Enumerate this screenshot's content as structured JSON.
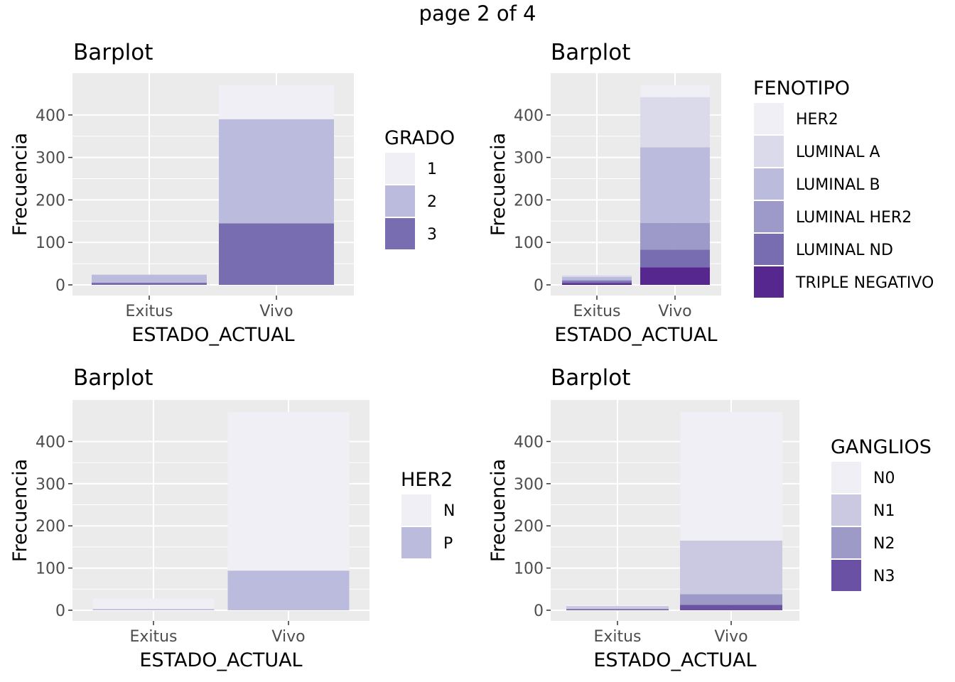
{
  "page_title": "page 2 of 4",
  "colors": {
    "panel_bg": "#EBEBEB",
    "grid": "#FFFFFF",
    "axis_text": "#4D4D4D",
    "palette": [
      "#F0EFF6",
      "#DBDAEB",
      "#BBBCDD",
      "#9D99C8",
      "#776DB0",
      "#56288F"
    ]
  },
  "chart_data": [
    {
      "type": "bar",
      "stacked": true,
      "title": "Barplot",
      "xlabel": "ESTADO_ACTUAL",
      "ylabel": "Frecuencia",
      "categories": [
        "Exitus",
        "Vivo"
      ],
      "ylim": [
        0,
        490
      ],
      "yticks": [
        0,
        100,
        200,
        300,
        400
      ],
      "legend_title": "GRADO",
      "legend_position": "right",
      "series": [
        {
          "name": "1",
          "color": "#F0EFF6",
          "values": [
            0,
            80
          ]
        },
        {
          "name": "2",
          "color": "#BBBCDD",
          "values": [
            19,
            245
          ]
        },
        {
          "name": "3",
          "color": "#776DB0",
          "values": [
            5,
            145
          ]
        }
      ]
    },
    {
      "type": "bar",
      "stacked": true,
      "title": "Barplot",
      "xlabel": "ESTADO_ACTUAL",
      "ylabel": "Frecuencia",
      "categories": [
        "Exitus",
        "Vivo"
      ],
      "ylim": [
        0,
        490
      ],
      "yticks": [
        0,
        100,
        200,
        300,
        400
      ],
      "legend_title": "FENOTIPO",
      "legend_position": "right",
      "series": [
        {
          "name": "HER2",
          "color": "#F0EFF6",
          "values": [
            1,
            28
          ]
        },
        {
          "name": "LUMINAL A",
          "color": "#DBDAEB",
          "values": [
            4,
            118
          ]
        },
        {
          "name": "LUMINAL B",
          "color": "#BBBCDD",
          "values": [
            7,
            178
          ]
        },
        {
          "name": "LUMINAL HER2",
          "color": "#9D99C8",
          "values": [
            3,
            63
          ]
        },
        {
          "name": "LUMINAL ND",
          "color": "#776DB0",
          "values": [
            5,
            42
          ]
        },
        {
          "name": "TRIPLE NEGATIVO",
          "color": "#56288F",
          "values": [
            4,
            41
          ]
        }
      ]
    },
    {
      "type": "bar",
      "stacked": true,
      "title": "Barplot",
      "xlabel": "ESTADO_ACTUAL",
      "ylabel": "Frecuencia",
      "categories": [
        "Exitus",
        "Vivo"
      ],
      "ylim": [
        0,
        490
      ],
      "yticks": [
        0,
        100,
        200,
        300,
        400
      ],
      "legend_title": "HER2",
      "legend_position": "right",
      "series": [
        {
          "name": "N",
          "color": "#F0EFF6",
          "values": [
            25,
            376
          ]
        },
        {
          "name": "P",
          "color": "#BBBCDD",
          "values": [
            3,
            94
          ]
        }
      ]
    },
    {
      "type": "bar",
      "stacked": true,
      "title": "Barplot",
      "xlabel": "ESTADO_ACTUAL",
      "ylabel": "Frecuencia",
      "categories": [
        "Exitus",
        "Vivo"
      ],
      "ylim": [
        0,
        490
      ],
      "yticks": [
        0,
        100,
        200,
        300,
        400
      ],
      "legend_title": "GANGLIOS",
      "legend_position": "right",
      "series": [
        {
          "name": "N0",
          "color": "#F0EFF6",
          "values": [
            3,
            305
          ]
        },
        {
          "name": "N1",
          "color": "#CBC9E2",
          "values": [
            6,
            127
          ]
        },
        {
          "name": "N2",
          "color": "#9E9AC8",
          "values": [
            2,
            25
          ]
        },
        {
          "name": "N3",
          "color": "#6A51A3",
          "values": [
            2,
            13
          ]
        }
      ]
    }
  ]
}
